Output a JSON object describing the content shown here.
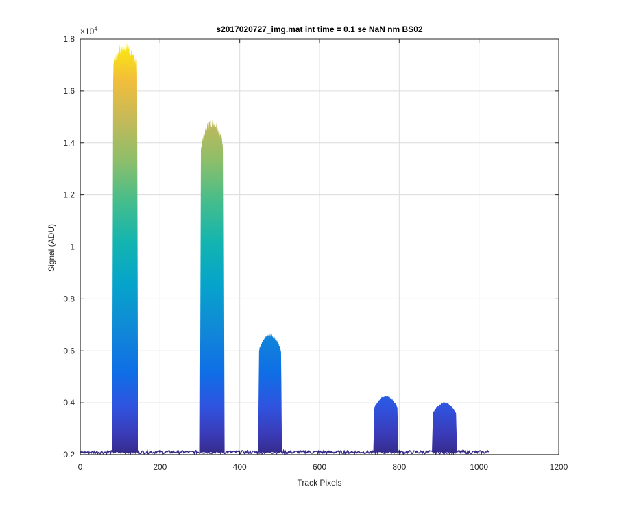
{
  "chart_data": {
    "type": "area",
    "title": "s2017020727_img.mat int time = 0.1 se  NaN nm BS02",
    "xlabel": "Track Pixels",
    "ylabel": "Signal (ADU)",
    "xlim": [
      0,
      1200
    ],
    "ylim": [
      2000,
      18000
    ],
    "x_ticks": [
      0,
      200,
      400,
      600,
      800,
      1000,
      1200
    ],
    "x_tick_labels": [
      "0",
      "200",
      "400",
      "600",
      "800",
      "1000",
      "1200"
    ],
    "y_ticks": [
      2000,
      4000,
      6000,
      8000,
      10000,
      12000,
      14000,
      16000,
      18000
    ],
    "y_tick_labels": [
      "0.2",
      "0.4",
      "0.6",
      "0.8",
      "1",
      "1.2",
      "1.4",
      "1.6",
      "1.8"
    ],
    "y_exponent_label": "×10",
    "y_exponent_power": "4",
    "grid": true,
    "colormap": "parula",
    "baseline": 2100,
    "trace_x_range": [
      0,
      1024
    ],
    "peaks": [
      {
        "x_start": 80,
        "x_end": 145,
        "peak": 17700,
        "edge": 17000
      },
      {
        "x_start": 300,
        "x_end": 362,
        "peak": 14800,
        "edge": 13800
      },
      {
        "x_start": 446,
        "x_end": 506,
        "peak": 6600,
        "edge": 6000
      },
      {
        "x_start": 735,
        "x_end": 798,
        "peak": 4250,
        "edge": 3800
      },
      {
        "x_start": 882,
        "x_end": 945,
        "peak": 4000,
        "edge": 3600
      }
    ]
  }
}
